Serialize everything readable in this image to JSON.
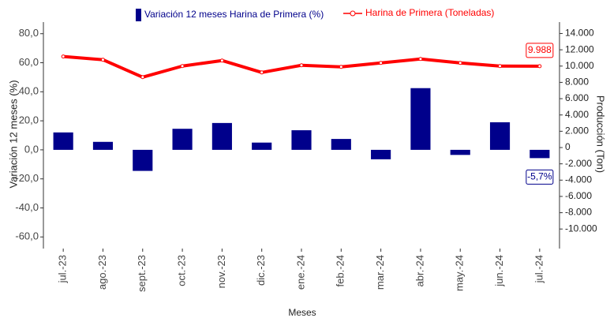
{
  "chart_data": {
    "type": "bar",
    "categories": [
      "jul.-23",
      "ago.-23",
      "sept.-23",
      "oct.-23",
      "nov.-23",
      "dic.-23",
      "ene.-24",
      "feb.-24",
      "mar.-24",
      "abr.-24",
      "may.-24",
      "jun.-24",
      "jul.-24"
    ],
    "series": [
      {
        "name": "Variación 12 meses Harina de Primera (%)",
        "type": "bar",
        "color": "#00008b",
        "values": [
          12,
          5.5,
          -14.5,
          14.5,
          18.5,
          5,
          13.5,
          7.5,
          -6.5,
          42.5,
          -3.5,
          19,
          -5.7
        ],
        "value_labels": [
          null,
          null,
          null,
          null,
          null,
          null,
          null,
          null,
          null,
          null,
          null,
          null,
          "-5,7%"
        ]
      },
      {
        "name": "Harina de Primera (Toneladas)",
        "type": "line",
        "axis": "y2",
        "color": "#ff0000",
        "values": [
          11170,
          10780,
          8640,
          10000,
          10680,
          9220,
          10100,
          9900,
          10390,
          10870,
          10390,
          10000,
          9988
        ],
        "value_labels": [
          null,
          null,
          null,
          null,
          null,
          null,
          null,
          null,
          null,
          null,
          null,
          null,
          "9.988"
        ]
      }
    ],
    "ylabel": "Variación 12 meses (%)",
    "y2label": "Producción (Ton)",
    "xlabel": "Meses",
    "ylim": [
      -68,
      88
    ],
    "yticks": [
      {
        "value": 80,
        "label": "80,0"
      },
      {
        "value": 60,
        "label": "60,0"
      },
      {
        "value": 40,
        "label": "40,0"
      },
      {
        "value": 20,
        "label": "20,0"
      },
      {
        "value": 0,
        "label": "0,0"
      },
      {
        "value": -20,
        "label": "-20,0"
      },
      {
        "value": -40,
        "label": "-40,0"
      },
      {
        "value": -60,
        "label": "-60,0"
      }
    ],
    "y2lim": [
      -12400,
      15400
    ],
    "y2ticks": [
      {
        "value": 14000,
        "label": "14.000"
      },
      {
        "value": 12000,
        "label": "12.000"
      },
      {
        "value": 10000,
        "label": "10.000"
      },
      {
        "value": 8000,
        "label": "8.000"
      },
      {
        "value": 6000,
        "label": "6.000"
      },
      {
        "value": 4000,
        "label": "4.000"
      },
      {
        "value": 2000,
        "label": "2.000"
      },
      0,
      {
        "value": -2000,
        "label": "-2.000"
      },
      {
        "value": -4000,
        "label": "-4.000"
      },
      {
        "value": -6000,
        "label": "-6.000"
      },
      {
        "value": -8000,
        "label": "-8.000"
      },
      {
        "value": -10000,
        "label": "-10.000"
      }
    ],
    "legend": "top",
    "grid": false
  }
}
